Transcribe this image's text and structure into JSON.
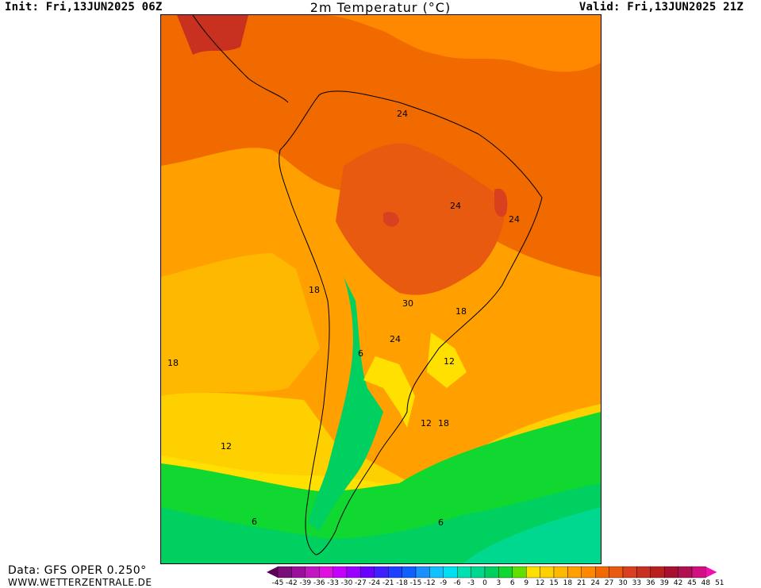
{
  "header": {
    "init": "Init: Fri,13JUN2025 06Z",
    "title": "2m Temperatur (°C)",
    "valid": "Valid: Fri,13JUN2025 21Z"
  },
  "footer": {
    "source": "Data: GFS OPER 0.250°",
    "site": "WWW.WETTERZENTRALE.DE"
  },
  "map": {
    "region": "South America",
    "contour_labels": [
      "24",
      "24",
      "24",
      "18",
      "30",
      "18",
      "6",
      "24",
      "12",
      "18",
      "12",
      "18",
      "12",
      "6",
      "6"
    ]
  },
  "legend": {
    "ticks": [
      "-45",
      "-42",
      "-39",
      "-36",
      "-33",
      "-30",
      "-27",
      "-24",
      "-21",
      "-18",
      "-15",
      "-12",
      "-9",
      "-6",
      "-3",
      "0",
      "3",
      "6",
      "9",
      "12",
      "15",
      "18",
      "21",
      "24",
      "27",
      "30",
      "33",
      "36",
      "39",
      "42",
      "45",
      "48",
      "51"
    ],
    "colors": [
      "#5a005a",
      "#7a0d7a",
      "#9a109a",
      "#c017c0",
      "#e010e0",
      "#c400ff",
      "#9a00ff",
      "#6a00ff",
      "#4020ff",
      "#2040ff",
      "#1060ff",
      "#1a90ff",
      "#10c0ff",
      "#00e0f0",
      "#00e0b0",
      "#00d890",
      "#00d060",
      "#10d830",
      "#60e000",
      "#ffe000",
      "#ffd000",
      "#ffb800",
      "#ffa000",
      "#ff8800",
      "#f06a00",
      "#e85a10",
      "#d84020",
      "#c83020",
      "#b82020",
      "#a81030",
      "#b01050",
      "#d01080",
      "#f010b0"
    ]
  }
}
